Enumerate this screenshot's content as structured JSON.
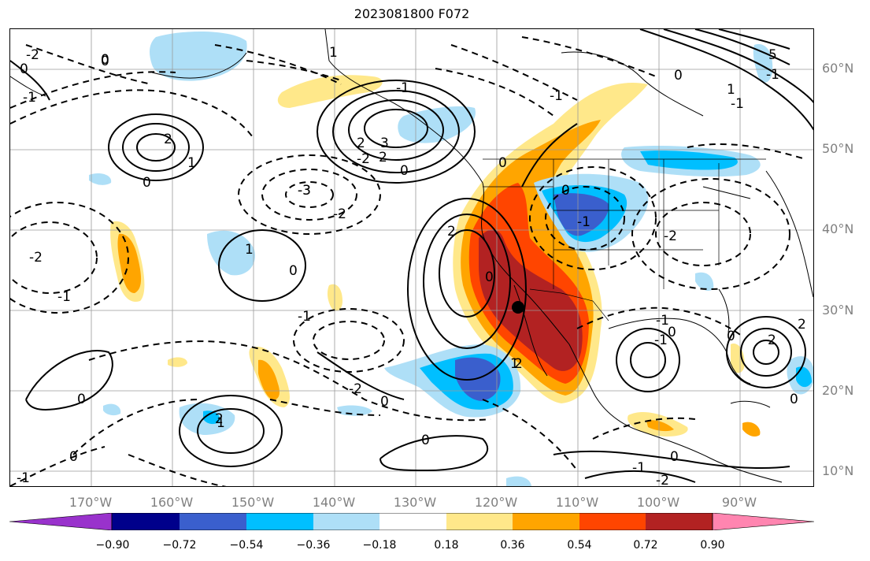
{
  "title": "2023081800 F072",
  "lat_labels": [
    "60°N",
    "50°N",
    "40°N",
    "30°N",
    "20°N",
    "10°N"
  ],
  "lon_labels": [
    "170°W",
    "160°W",
    "150°W",
    "140°W",
    "130°W",
    "120°W",
    "110°W",
    "100°W",
    "90°W"
  ],
  "colorbar": {
    "ticks": [
      "−0.90",
      "−0.72",
      "−0.54",
      "−0.36",
      "−0.18",
      "0.18",
      "0.36",
      "0.54",
      "0.72",
      "0.90"
    ],
    "colors": [
      "#9932cc",
      "#00008b",
      "#3a5fcd",
      "#00bfff",
      "#aedff7",
      "#ffffff",
      "#ffe88a",
      "#ffa500",
      "#ff4500",
      "#b22222",
      "#ff85b0"
    ]
  },
  "contour_labels": [
    "0",
    "-2",
    "-1",
    "0",
    "2",
    "0",
    "-1",
    "-2",
    "-3",
    "-1",
    "2",
    "3",
    "2",
    "0",
    "-1",
    "0",
    "-2",
    "1",
    "0",
    "-3",
    "-2",
    "1",
    "2",
    "0",
    "-1",
    "0",
    "-2",
    "-1",
    "1",
    "0",
    "-2",
    "2",
    "0",
    "5",
    "1",
    "0",
    "-1",
    "0",
    "-1",
    "0",
    "2",
    "0",
    "-1",
    "-2",
    "-1",
    "0",
    "2",
    "-1",
    "0",
    "1",
    "0",
    "1",
    "2",
    "-1",
    "0"
  ],
  "legend_colors": {
    "marker": "#000000"
  }
}
